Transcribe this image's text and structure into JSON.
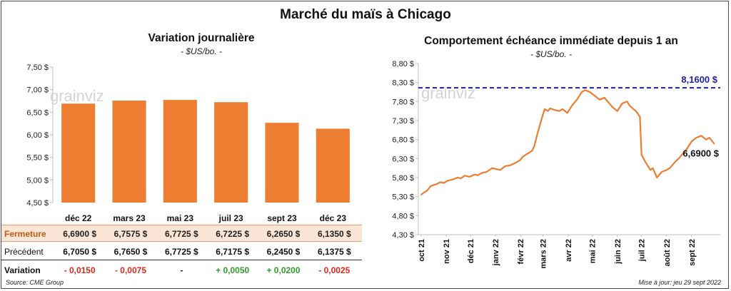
{
  "main_title": "Marché du maïs à Chicago",
  "source": "Source: CME Group",
  "updated": "Mise à jour: jeu 29 sept 2022",
  "colors": {
    "bar": "#ed7d31",
    "line": "#ed7d31",
    "ref_line": "#1f1fa8",
    "close_bg": "#fbe5d6",
    "negative": "#e0261b",
    "positive": "#2e9e2e"
  },
  "watermark": "grainviz",
  "chart_data": [
    {
      "type": "bar",
      "title": "Variation journalière",
      "subtitle": "- $US/bo. -",
      "categories": [
        "déc 22",
        "mars 23",
        "mai 23",
        "juil 23",
        "sept 23",
        "déc 23"
      ],
      "values": [
        6.69,
        6.7575,
        6.7725,
        6.7225,
        6.265,
        6.135
      ],
      "ylim": [
        4.5,
        7.5
      ],
      "yticks": [
        "4,50 $",
        "5,00 $",
        "5,50 $",
        "6,00 $",
        "6,50 $",
        "7,00 $",
        "7,50 $"
      ],
      "grid": false
    },
    {
      "type": "line",
      "title": "Comportement échéance immédiate depuis 1 an",
      "subtitle": "- $US/bo. -",
      "ylim": [
        4.3,
        8.8
      ],
      "yticks": [
        "4,30 $",
        "4,80 $",
        "5,30 $",
        "5,80 $",
        "6,30 $",
        "6,80 $",
        "7,30 $",
        "7,80 $",
        "8,30 $",
        "8,80 $"
      ],
      "x_labels": [
        "oct 21",
        "nov 21",
        "déc 21",
        "janv 22",
        "févr 22",
        "mars 22",
        "avr 22",
        "mai 22",
        "juin 22",
        "juil 22",
        "août 22",
        "sept 22"
      ],
      "x": [
        "2021-10-01",
        "2021-10-04",
        "2021-10-08",
        "2021-10-13",
        "2021-10-19",
        "2021-10-25",
        "2021-10-29",
        "2021-11-03",
        "2021-11-09",
        "2021-11-15",
        "2021-11-19",
        "2021-11-24",
        "2021-11-30",
        "2021-12-06",
        "2021-12-10",
        "2021-12-15",
        "2021-12-21",
        "2021-12-28",
        "2022-01-03",
        "2022-01-07",
        "2022-01-13",
        "2022-01-19",
        "2022-01-25",
        "2022-01-31",
        "2022-02-04",
        "2022-02-09",
        "2022-02-15",
        "2022-02-18",
        "2022-02-22",
        "2022-02-24",
        "2022-02-28",
        "2022-03-03",
        "2022-03-07",
        "2022-03-10",
        "2022-03-15",
        "2022-03-21",
        "2022-03-25",
        "2022-03-31",
        "2022-04-06",
        "2022-04-12",
        "2022-04-18",
        "2022-04-22",
        "2022-04-28",
        "2022-05-04",
        "2022-05-10",
        "2022-05-16",
        "2022-05-20",
        "2022-05-26",
        "2022-06-01",
        "2022-06-07",
        "2022-06-13",
        "2022-06-16",
        "2022-06-21",
        "2022-06-24",
        "2022-06-29",
        "2022-07-01",
        "2022-07-06",
        "2022-07-12",
        "2022-07-15",
        "2022-07-20",
        "2022-07-26",
        "2022-08-01",
        "2022-08-05",
        "2022-08-11",
        "2022-08-16",
        "2022-08-22",
        "2022-08-26",
        "2022-09-01",
        "2022-09-07",
        "2022-09-13",
        "2022-09-19",
        "2022-09-23",
        "2022-09-29"
      ],
      "series": [
        {
          "values": [
            5.35,
            5.4,
            5.45,
            5.58,
            5.62,
            5.68,
            5.66,
            5.72,
            5.75,
            5.8,
            5.78,
            5.85,
            5.82,
            5.88,
            5.86,
            5.92,
            5.95,
            6.05,
            6.02,
            6.0,
            6.1,
            6.12,
            6.18,
            6.25,
            6.35,
            6.42,
            6.5,
            6.62,
            6.95,
            7.1,
            7.4,
            7.6,
            7.55,
            7.62,
            7.58,
            7.55,
            7.6,
            7.5,
            7.7,
            7.85,
            8.05,
            8.1,
            8.05,
            7.95,
            7.85,
            7.9,
            7.8,
            7.65,
            7.55,
            7.75,
            7.8,
            7.7,
            7.6,
            7.55,
            7.4,
            6.4,
            6.2,
            6.0,
            6.05,
            5.8,
            5.95,
            6.0,
            6.05,
            6.2,
            6.3,
            6.45,
            6.55,
            6.75,
            6.85,
            6.9,
            6.8,
            6.85,
            6.69
          ]
        }
      ],
      "reference_line": {
        "value": 8.16,
        "label": "8,1600 $"
      },
      "last_value_label": "6,6900 $",
      "grid": false
    }
  ],
  "table": {
    "rows": [
      {
        "label": "Fermeture",
        "cells": [
          "6,6900 $",
          "6,7575 $",
          "6,7725 $",
          "6,7225 $",
          "6,2650 $",
          "6,1350 $"
        ]
      },
      {
        "label": "Précédent",
        "cells": [
          "6,7050 $",
          "6,7650 $",
          "6,7725 $",
          "6,7175 $",
          "6,2450 $",
          "6,1375 $"
        ]
      },
      {
        "label": "Variation",
        "cells": [
          "- 0,0150",
          "- 0,0075",
          "-",
          "+ 0,0050",
          "+ 0,0200",
          "- 0,0025"
        ]
      }
    ]
  }
}
